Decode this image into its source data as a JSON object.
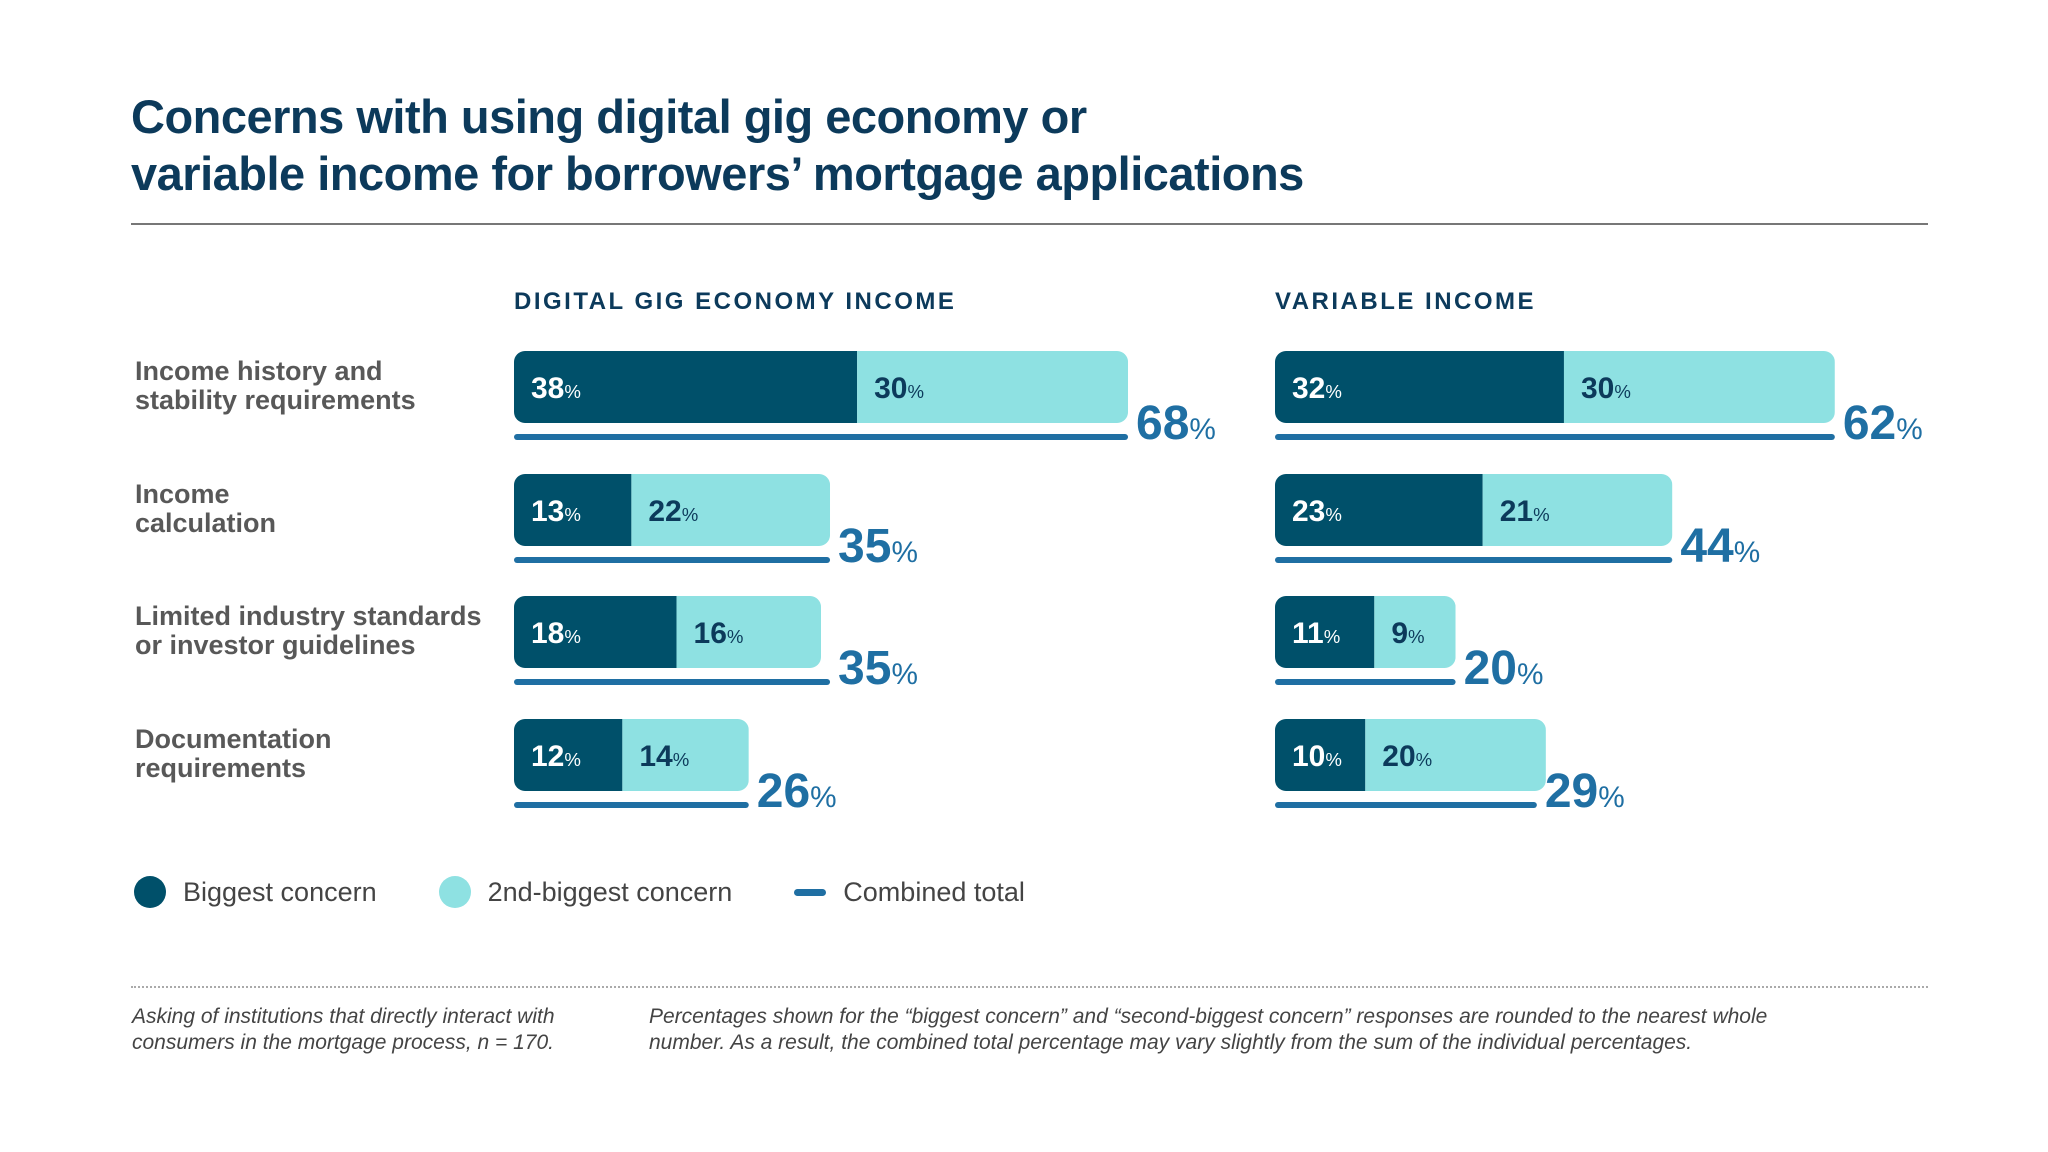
{
  "title_lines": [
    "Concerns with using digital gig economy or",
    "variable income for borrowers’ mortgage applications"
  ],
  "chart_data": {
    "type": "bar",
    "stacked": true,
    "title": "Concerns with using digital gig economy or variable income for borrowers’ mortgage applications",
    "categories": [
      "Income history and stability requirements",
      "Income calculation",
      "Limited industry standards or investor guidelines",
      "Documentation requirements"
    ],
    "category_lines": [
      [
        "Income history and",
        "stability requirements"
      ],
      [
        "Income",
        "calculation"
      ],
      [
        "Limited industry standards",
        "or investor guidelines"
      ],
      [
        "Documentation",
        "requirements"
      ]
    ],
    "panels": [
      {
        "title": "DIGITAL GIG ECONOMY INCOME",
        "series": [
          {
            "name": "Biggest concern",
            "values": [
              38,
              13,
              18,
              12
            ]
          },
          {
            "name": "2nd-biggest concern",
            "values": [
              30,
              22,
              16,
              14
            ]
          },
          {
            "name": "Combined total",
            "values": [
              68,
              35,
              35,
              26
            ]
          }
        ]
      },
      {
        "title": "VARIABLE INCOME",
        "series": [
          {
            "name": "Biggest concern",
            "values": [
              32,
              23,
              11,
              10
            ]
          },
          {
            "name": "2nd-biggest concern",
            "values": [
              30,
              21,
              9,
              20
            ]
          },
          {
            "name": "Combined total",
            "values": [
              62,
              44,
              20,
              29
            ]
          }
        ]
      }
    ],
    "unit": "%",
    "legend": [
      "Biggest concern",
      "2nd-biggest concern",
      "Combined total"
    ],
    "legend_position": "bottom-left",
    "grid": false,
    "colors": {
      "biggest": "#00506a",
      "second": "#8ee1e2",
      "total": "#1f6fa3"
    }
  },
  "notes": [
    "Asking of institutions that directly interact with consumers in the mortgage process, n = 170.",
    "Percentages shown for the “biggest concern” and “second-biggest concern” responses are rounded to the nearest whole number. As a result, the combined total percentage may vary slightly from the sum of the individual percentages."
  ]
}
